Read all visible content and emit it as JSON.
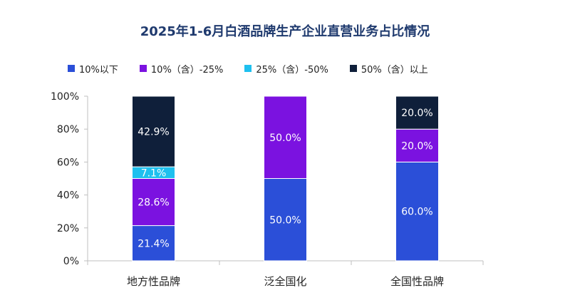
{
  "chart_data": {
    "type": "bar",
    "stacked": true,
    "title": "2025年1-6月白酒品牌生产企业直营业务占比情况",
    "categories": [
      "地方性品牌",
      "泛全国化",
      "全国性品牌"
    ],
    "ylim": [
      0,
      100
    ],
    "yticks": [
      "0%",
      "20%",
      "40%",
      "60%",
      "80%",
      "100%"
    ],
    "legend_position": "top",
    "grid": false,
    "series": [
      {
        "name": "10%以下",
        "color": "#2b4fd8",
        "values": [
          21.4,
          50.0,
          60.0
        ],
        "labels": [
          "21.4%",
          "50.0%",
          "60.0%"
        ]
      },
      {
        "name": "10%（含）-25%",
        "color": "#7b12e0",
        "values": [
          28.6,
          50.0,
          20.0
        ],
        "labels": [
          "28.6%",
          "50.0%",
          "20.0%"
        ]
      },
      {
        "name": "25%（含）-50%",
        "color": "#1ec0ef",
        "values": [
          7.1,
          0,
          0
        ],
        "labels": [
          "7.1%",
          "",
          ""
        ]
      },
      {
        "name": "50%（含）以上",
        "color": "#0f1f3a",
        "values": [
          42.9,
          0,
          20.0
        ],
        "labels": [
          "42.9%",
          "",
          "20.0%"
        ]
      }
    ]
  }
}
